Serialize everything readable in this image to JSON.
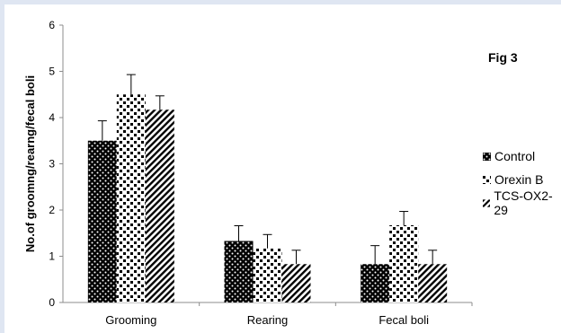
{
  "fig_label": "Fig 3",
  "chart_data": {
    "type": "bar",
    "categories": [
      "Grooming",
      "Rearing",
      "Fecal  boli"
    ],
    "series": [
      {
        "name": "Control",
        "pattern": "dots",
        "values": [
          3.5,
          1.33,
          0.83
        ],
        "errors": [
          0.43,
          0.33,
          0.4
        ]
      },
      {
        "name": "Orexin B",
        "pattern": "checker",
        "values": [
          4.5,
          1.17,
          1.67
        ],
        "errors": [
          0.43,
          0.3,
          0.3
        ]
      },
      {
        "name": "TCS-OX2-29",
        "pattern": "diagonal",
        "values": [
          4.17,
          0.83,
          0.83
        ],
        "errors": [
          0.3,
          0.3,
          0.3
        ]
      }
    ],
    "xlabel": "",
    "ylabel": "No.of groomng/rearng/fecal boli",
    "ylim": [
      0,
      6
    ],
    "yticks": [
      "0",
      "1",
      "2",
      "3",
      "4",
      "5",
      "6"
    ],
    "grid": false,
    "legend": "right",
    "colors": {
      "bar": "#000000",
      "background": "#ffffff",
      "page": "#dfe6f2"
    }
  }
}
